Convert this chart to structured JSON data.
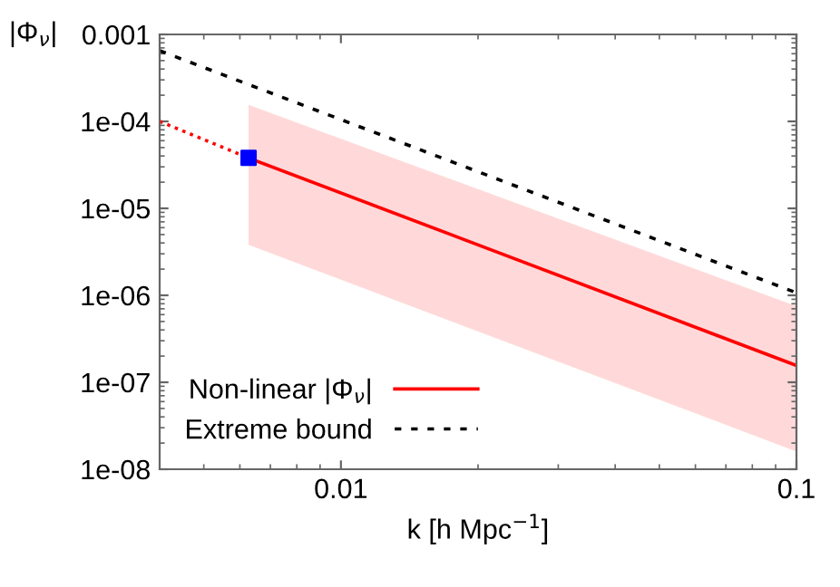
{
  "chart_data": {
    "type": "line",
    "xlabel": "k [h Mpc$^{−1}$]",
    "ylabel": "|Φ$_{ν}$|",
    "log": "xy",
    "xlim": [
      0.004,
      0.1
    ],
    "ylim": [
      1e-08,
      0.001
    ],
    "xticks": [
      0.01,
      0.1
    ],
    "yticks": [
      {
        "value": 1e-08,
        "label": "1e-08"
      },
      {
        "value": 1e-07,
        "label": "1e-07"
      },
      {
        "value": 1e-06,
        "label": "1e-06"
      },
      {
        "value": 1e-05,
        "label": "1e-05"
      },
      {
        "value": 0.0001,
        "label": "1e-04"
      },
      {
        "value": 0.001,
        "label": "0.001"
      }
    ],
    "grid": false,
    "legend": "bottom left",
    "series": [
      {
        "color": "#ff0000",
        "x": [
          0.004,
          0.00627
        ],
        "values": [
          0.0001,
          3.8e-05
        ],
        "line_style": "dotted"
      },
      {
        "name": "Non-linear |Φ$_{ν}$|",
        "color": "#ff0000",
        "x": [
          0.00627,
          0.1
        ],
        "values": [
          3.8e-05,
          1.56e-07
        ],
        "line_style": "solid",
        "lower": [
          3.8e-06,
          1.6e-08
        ],
        "upper": [
          0.000155,
          7.5e-07
        ]
      },
      {
        "type": "scatter",
        "color": "#0000ff",
        "x": [
          0.00627
        ],
        "values": [
          3.8e-05
        ],
        "marker": "square"
      },
      {
        "name": "Extreme bound",
        "color": "#000000",
        "x": [
          0.004,
          0.1
        ],
        "values": [
          0.00065,
          1.07e-06
        ],
        "line_style": "dashed"
      }
    ]
  }
}
